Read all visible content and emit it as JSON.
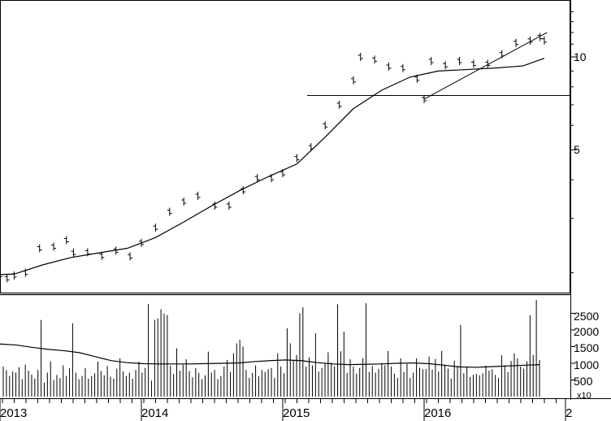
{
  "chart_data": [
    {
      "type": "ohlc",
      "title": "",
      "scale": "log",
      "y_ticks": [
        5,
        10
      ],
      "y_tick_labels": [
        "5",
        "10"
      ],
      "series": [
        {
          "points": [
            [
              2012.92,
              2.0
            ],
            [
              2013.0,
              1.97
            ],
            [
              2013.05,
              1.92
            ],
            [
              2013.1,
              1.96
            ],
            [
              2013.18,
              2.0
            ],
            [
              2013.28,
              2.4
            ],
            [
              2013.38,
              2.43
            ],
            [
              2013.47,
              2.55
            ],
            [
              2013.52,
              2.32
            ],
            [
              2013.62,
              2.33
            ],
            [
              2013.72,
              2.27
            ],
            [
              2013.82,
              2.36
            ],
            [
              2013.92,
              2.26
            ],
            [
              2014.0,
              2.5
            ],
            [
              2014.1,
              2.8
            ],
            [
              2014.2,
              3.15
            ],
            [
              2014.3,
              3.4
            ],
            [
              2014.4,
              3.55
            ],
            [
              2014.52,
              3.3
            ],
            [
              2014.62,
              3.3
            ],
            [
              2014.72,
              3.7
            ],
            [
              2014.82,
              4.05
            ],
            [
              2014.92,
              4.05
            ],
            [
              2015.0,
              4.2
            ],
            [
              2015.1,
              4.7
            ],
            [
              2015.2,
              5.1
            ],
            [
              2015.3,
              6.0
            ],
            [
              2015.4,
              7.0
            ],
            [
              2015.5,
              8.4
            ],
            [
              2015.55,
              10.0
            ],
            [
              2015.65,
              9.8
            ],
            [
              2015.75,
              9.3
            ],
            [
              2015.85,
              9.2
            ],
            [
              2015.95,
              8.5
            ],
            [
              2016.0,
              7.3
            ],
            [
              2016.05,
              9.7
            ],
            [
              2016.15,
              9.4
            ],
            [
              2016.25,
              9.7
            ],
            [
              2016.35,
              9.5
            ],
            [
              2016.45,
              9.5
            ],
            [
              2016.55,
              10.2
            ],
            [
              2016.65,
              11.1
            ],
            [
              2016.75,
              11.3
            ],
            [
              2016.82,
              11.6
            ],
            [
              2016.85,
              11.3
            ]
          ]
        },
        {
          "name": "",
          "type": "moving-average",
          "points": [
            [
              2012.92,
              1.97
            ],
            [
              2013.1,
              1.98
            ],
            [
              2013.3,
              2.12
            ],
            [
              2013.5,
              2.24
            ],
            [
              2013.7,
              2.32
            ],
            [
              2013.9,
              2.4
            ],
            [
              2014.1,
              2.6
            ],
            [
              2014.3,
              2.92
            ],
            [
              2014.5,
              3.3
            ],
            [
              2014.7,
              3.7
            ],
            [
              2014.9,
              4.1
            ],
            [
              2015.1,
              4.5
            ],
            [
              2015.3,
              5.5
            ],
            [
              2015.5,
              6.8
            ],
            [
              2015.7,
              7.8
            ],
            [
              2015.9,
              8.6
            ],
            [
              2016.1,
              9.0
            ],
            [
              2016.3,
              9.1
            ],
            [
              2016.5,
              9.2
            ],
            [
              2016.7,
              9.35
            ],
            [
              2016.85,
              9.9
            ]
          ]
        }
      ],
      "annotations": [
        {
          "type": "horizontal-line",
          "y": 7.5
        },
        {
          "type": "trend-line",
          "from": [
            2016.0,
            7.3
          ],
          "to": [
            2016.87,
            12.0
          ]
        }
      ]
    },
    {
      "type": "bar",
      "title": "",
      "y_ticks": [
        500,
        1000,
        1500,
        2000,
        2500
      ],
      "y_tick_labels": [
        "500",
        "1000",
        "1500",
        "2000",
        "2500"
      ],
      "multiplier_label": "x10",
      "x_ticks": [
        "2013",
        "2014",
        "2015",
        "2016",
        "2"
      ],
      "volume_series": [
        900,
        800,
        620,
        750,
        720,
        880,
        520,
        960,
        780,
        660,
        540,
        800,
        2300,
        420,
        720,
        1060,
        500,
        650,
        560,
        940,
        620,
        850,
        2200,
        720,
        520,
        620,
        860,
        540,
        620,
        700,
        1050,
        770,
        640,
        920,
        600,
        540,
        840,
        1150,
        760,
        620,
        720,
        540,
        800,
        1050,
        720,
        860,
        2780,
        480,
        2300,
        2350,
        2620,
        2490,
        2450,
        930,
        680,
        1450,
        780,
        960,
        1120,
        770,
        580,
        860,
        710,
        520,
        640,
        1350,
        720,
        800,
        520,
        620,
        900,
        1100,
        740,
        1300,
        1600,
        1700,
        1500,
        800,
        560,
        710,
        940,
        610,
        800,
        740,
        820,
        860,
        560,
        1300,
        900,
        700,
        2050,
        1600,
        1100,
        1250,
        2500,
        2680,
        900,
        1180,
        940,
        1900,
        750,
        860,
        1010,
        1330,
        1020,
        910,
        2770,
        1360,
        1950,
        710,
        1120,
        900,
        690,
        860,
        1150,
        2800,
        740,
        920,
        720,
        830,
        1010,
        940,
        1370,
        900,
        690,
        560,
        1150,
        740,
        980,
        560,
        720,
        1150,
        870,
        820,
        830,
        1200,
        810,
        1130,
        750,
        1370,
        960,
        840,
        540,
        1080,
        920,
        2150,
        700,
        880,
        590,
        660,
        680,
        640,
        700,
        930,
        780,
        820,
        650,
        560,
        1240,
        930,
        740,
        1070,
        1300,
        1150,
        900,
        840,
        1060,
        2440,
        1250,
        2900,
        1100
      ],
      "moving_average": [
        1580,
        1550,
        1480,
        1420,
        1380,
        1320,
        1200,
        1080,
        1020,
        990,
        980,
        980,
        980,
        990,
        1000,
        1010,
        1050,
        1080,
        1100,
        1080,
        1020,
        980,
        960,
        970,
        980,
        1000,
        1010,
        990,
        940,
        890,
        880,
        900,
        920,
        940,
        960
      ]
    }
  ]
}
